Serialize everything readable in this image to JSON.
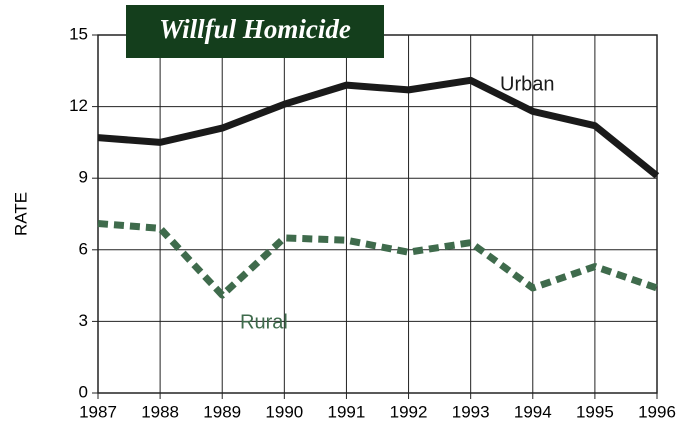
{
  "chart_data": {
    "type": "line",
    "title": "Willful Homicide",
    "y_label": "RATE",
    "x": [
      1987,
      1988,
      1989,
      1990,
      1991,
      1992,
      1993,
      1994,
      1995,
      1996
    ],
    "xlim": [
      1987,
      1996
    ],
    "xticks": [
      1987,
      1988,
      1989,
      1990,
      1991,
      1992,
      1993,
      1994,
      1995,
      1996
    ],
    "ylim": [
      0,
      15
    ],
    "yticks": [
      0,
      3,
      6,
      9,
      12,
      15
    ],
    "grid": true,
    "series": [
      {
        "name": "Urban",
        "color": "#1a1a1a",
        "style": "solid",
        "values": [
          10.7,
          10.5,
          11.1,
          12.1,
          12.9,
          12.7,
          13.1,
          11.8,
          11.2,
          9.1
        ]
      },
      {
        "name": "Rural",
        "color": "#3f6b4c",
        "style": "dashed",
        "values": [
          7.1,
          6.9,
          4.1,
          6.5,
          6.4,
          5.9,
          6.3,
          4.4,
          5.3,
          4.4
        ]
      }
    ]
  }
}
